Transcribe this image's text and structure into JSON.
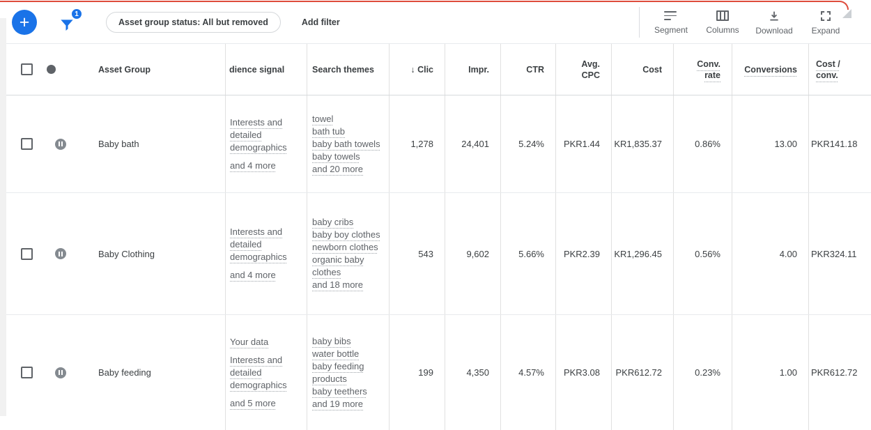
{
  "page": {
    "accent_blue": "#1a73e8",
    "top_border_color": "#de4b3b"
  },
  "toolbar": {
    "add_button_label": "+",
    "filter_badge_count": "1",
    "filter_chip_label": "Asset group status: All but removed",
    "add_filter_label": "Add filter",
    "actions": {
      "segment": "Segment",
      "columns": "Columns",
      "download": "Download",
      "expand": "Expand"
    }
  },
  "table": {
    "columns": {
      "asset_group": "Asset Group",
      "audience_signal": "dience signal",
      "search_themes": "Search themes",
      "clicks": "↓ Clic",
      "impressions": "Impr.",
      "ctr": "CTR",
      "avg_cpc_l1": "Avg.",
      "avg_cpc_l2": "CPC",
      "cost": "Cost",
      "conv_rate_l1": "Conv.",
      "conv_rate_l2": "rate",
      "conversions": "Conversions",
      "cost_per_conv_l1": "Cost /",
      "cost_per_conv_l2": "conv."
    },
    "rows": [
      {
        "name": "Baby bath",
        "status": "paused",
        "audience": [
          "Interests and detailed demographics"
        ],
        "audience_more": "and 4 more",
        "themes": [
          "towel",
          "bath tub",
          "baby bath towels",
          "baby towels"
        ],
        "themes_more": "and 20 more",
        "clicks": "1,278",
        "impressions": "24,401",
        "ctr": "5.24%",
        "avg_cpc": "PKR1.44",
        "cost": "KR1,835.37",
        "conv_rate": "0.86%",
        "conversions": "13.00",
        "cost_per_conv": "PKR141.18"
      },
      {
        "name": "Baby Clothing",
        "status": "paused",
        "audience": [
          "Interests and detailed demographics"
        ],
        "audience_more": "and 4 more",
        "themes": [
          "baby cribs",
          "baby boy clothes",
          "newborn clothes",
          "organic baby clothes"
        ],
        "themes_more": "and 18 more",
        "clicks": "543",
        "impressions": "9,602",
        "ctr": "5.66%",
        "avg_cpc": "PKR2.39",
        "cost": "KR1,296.45",
        "conv_rate": "0.56%",
        "conversions": "4.00",
        "cost_per_conv": "PKR324.11"
      },
      {
        "name": "Baby feeding",
        "status": "paused",
        "audience": [
          "Your data",
          "Interests and detailed demographics"
        ],
        "audience_more": "and 5 more",
        "themes": [
          "baby bibs",
          "water bottle",
          "baby feeding products",
          "baby teethers"
        ],
        "themes_more": "and 19 more",
        "clicks": "199",
        "impressions": "4,350",
        "ctr": "4.57%",
        "avg_cpc": "PKR3.08",
        "cost": "PKR612.72",
        "conv_rate": "0.23%",
        "conversions": "1.00",
        "cost_per_conv": "PKR612.72"
      }
    ]
  }
}
